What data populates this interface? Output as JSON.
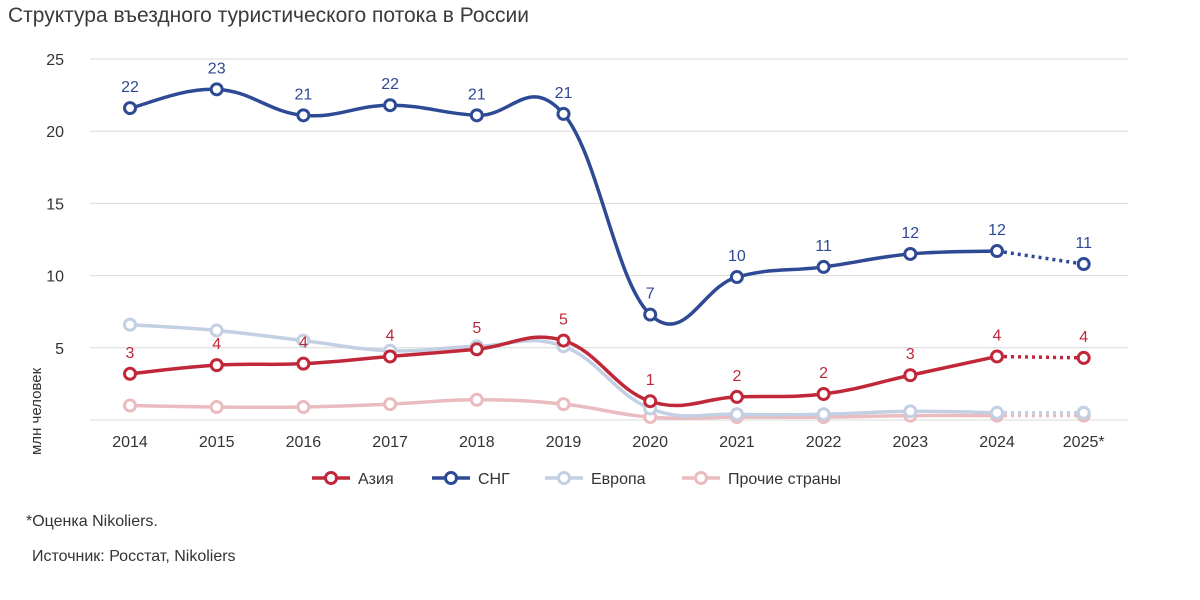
{
  "chart_data": {
    "type": "line",
    "title": "Структура въездного туристического потока в России",
    "ylabel": "млн человек",
    "xlabel": "",
    "categories": [
      "2014",
      "2015",
      "2016",
      "2017",
      "2018",
      "2019",
      "2020",
      "2021",
      "2022",
      "2023",
      "2024",
      "2025*"
    ],
    "ylim": [
      0,
      25
    ],
    "yticks": [
      5,
      10,
      15,
      20,
      25
    ],
    "grid": true,
    "legend_position": "bottom",
    "estimate_from_index": 10,
    "series": [
      {
        "name": "Азия",
        "color": "#c0283a",
        "values": [
          3.2,
          3.8,
          3.9,
          4.4,
          4.9,
          5.5,
          1.3,
          1.6,
          1.8,
          3.1,
          4.4,
          4.3
        ],
        "labels": [
          "3",
          "4",
          "4",
          "4",
          "5",
          "5",
          "1",
          "2",
          "2",
          "3",
          "4",
          "4"
        ]
      },
      {
        "name": "СНГ",
        "color": "#2f4a94",
        "values": [
          21.6,
          22.9,
          21.1,
          21.8,
          21.1,
          21.2,
          7.3,
          9.9,
          10.6,
          11.5,
          11.7,
          10.8
        ],
        "labels": [
          "22",
          "23",
          "21",
          "22",
          "21",
          "21",
          "7",
          "10",
          "11",
          "12",
          "12",
          "11"
        ]
      },
      {
        "name": "Европа",
        "color": "#c3cfe3",
        "values": [
          6.6,
          6.2,
          5.5,
          4.8,
          5.1,
          5.1,
          0.8,
          0.4,
          0.4,
          0.6,
          0.5,
          0.5
        ],
        "labels": null
      },
      {
        "name": "Прочие страны",
        "color": "#ebbcbf",
        "values": [
          1.0,
          0.9,
          0.9,
          1.1,
          1.4,
          1.1,
          0.2,
          0.2,
          0.2,
          0.3,
          0.3,
          0.3
        ],
        "labels": null
      }
    ]
  },
  "footnote": "*Оценка Nikoliers.",
  "source": "Источник: Росстат, Nikoliers"
}
